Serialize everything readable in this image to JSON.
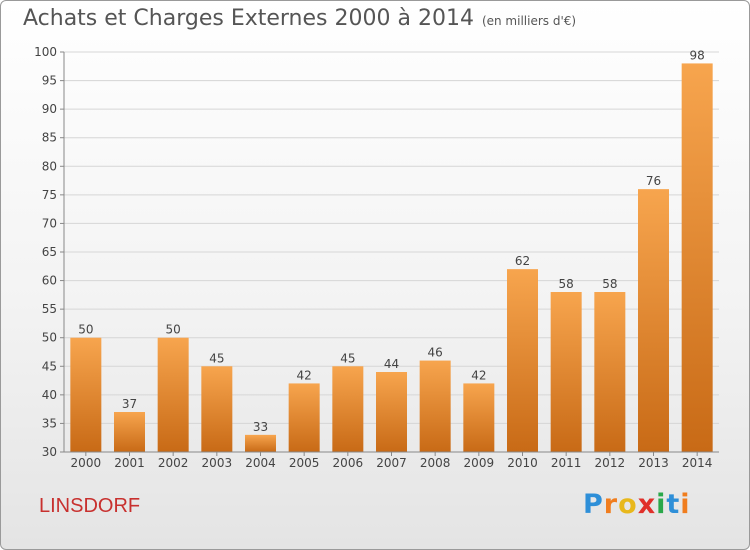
{
  "header": {
    "title": "Achats et Charges Externes 2000 à 2014",
    "subtitle": "(en milliers d'€)"
  },
  "footer": {
    "commune": "LINSDORF",
    "logo_text": "Proxiti"
  },
  "colors": {
    "bar_top": "#f7a54e",
    "bar_bottom": "#c86a16",
    "grid": "#d6d6d6",
    "commune_text": "#c8302e"
  },
  "chart_data": {
    "type": "bar",
    "title": "Achats et Charges Externes 2000 à 2014",
    "subtitle": "(en milliers d'€)",
    "xlabel": "",
    "ylabel": "",
    "categories": [
      "2000",
      "2001",
      "2002",
      "2003",
      "2004",
      "2005",
      "2006",
      "2007",
      "2008",
      "2009",
      "2010",
      "2011",
      "2012",
      "2013",
      "2014"
    ],
    "values": [
      50,
      37,
      50,
      45,
      33,
      42,
      45,
      44,
      46,
      42,
      62,
      58,
      58,
      76,
      98
    ],
    "data_labels": [
      "50",
      "37",
      "50",
      "45",
      "33",
      "42",
      "45",
      "44",
      "46",
      "42",
      "62",
      "58",
      "58",
      "76",
      "98"
    ],
    "yticks": [
      "30",
      "35",
      "40",
      "45",
      "50",
      "55",
      "60",
      "65",
      "70",
      "75",
      "80",
      "85",
      "90",
      "95",
      "100"
    ],
    "ylim": [
      30,
      100
    ],
    "grid": true,
    "legend": "none"
  }
}
